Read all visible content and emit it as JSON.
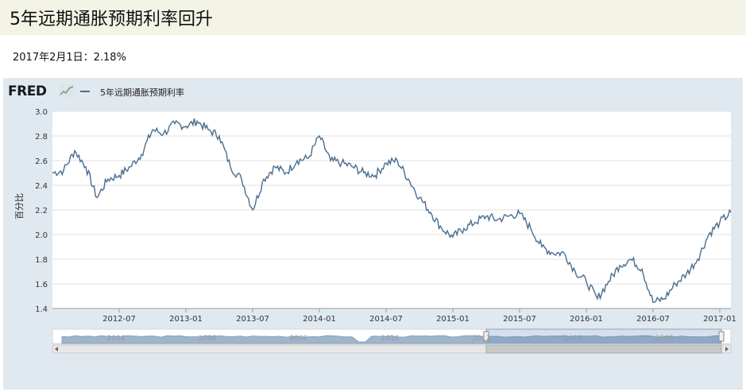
{
  "page": {
    "title": "5年远期通胀预期利率回升",
    "subtitle": "2017年2月1日：2.18%"
  },
  "fred": {
    "logo_text": "FRED",
    "logo_icon": "fred-chart-icon"
  },
  "colors": {
    "series": "#4a6d8f",
    "navigator_fill": "#9fb5cc",
    "panel_bg": "#e1e9f0"
  },
  "chart_data": {
    "type": "line",
    "title": "",
    "xlabel": "",
    "ylabel": "百分比",
    "ylim": [
      1.4,
      3.0
    ],
    "yticks": [
      "1.4",
      "1.6",
      "1.8",
      "2.0",
      "2.2",
      "2.4",
      "2.6",
      "2.8",
      "3.0"
    ],
    "xticks": [
      "2012-07",
      "2013-01",
      "2013-07",
      "2014-01",
      "2014-07",
      "2015-01",
      "2015-07",
      "2016-01",
      "2016-07",
      "2017-01"
    ],
    "grid": true,
    "legend": "top-left",
    "series": [
      {
        "name": "5年远期通胀预期利率",
        "x": [
          "2012-01",
          "2012-02",
          "2012-03",
          "2012-04",
          "2012-05",
          "2012-06",
          "2012-07",
          "2012-08",
          "2012-09",
          "2012-10",
          "2012-11",
          "2012-12",
          "2013-01",
          "2013-02",
          "2013-03",
          "2013-04",
          "2013-05",
          "2013-06",
          "2013-07",
          "2013-08",
          "2013-09",
          "2013-10",
          "2013-11",
          "2013-12",
          "2014-01",
          "2014-02",
          "2014-03",
          "2014-04",
          "2014-05",
          "2014-06",
          "2014-07",
          "2014-08",
          "2014-09",
          "2014-10",
          "2014-11",
          "2014-12",
          "2015-01",
          "2015-02",
          "2015-03",
          "2015-04",
          "2015-05",
          "2015-06",
          "2015-07",
          "2015-08",
          "2015-09",
          "2015-10",
          "2015-11",
          "2015-12",
          "2016-01",
          "2016-02",
          "2016-03",
          "2016-04",
          "2016-05",
          "2016-06",
          "2016-07",
          "2016-08",
          "2016-09",
          "2016-10",
          "2016-11",
          "2016-12",
          "2017-01",
          "2017-02"
        ],
        "values": [
          2.5,
          2.52,
          2.68,
          2.55,
          2.3,
          2.45,
          2.48,
          2.55,
          2.65,
          2.85,
          2.82,
          2.9,
          2.88,
          2.92,
          2.85,
          2.8,
          2.55,
          2.45,
          2.2,
          2.45,
          2.55,
          2.5,
          2.6,
          2.62,
          2.8,
          2.6,
          2.58,
          2.55,
          2.5,
          2.48,
          2.58,
          2.6,
          2.45,
          2.3,
          2.18,
          2.05,
          1.98,
          2.05,
          2.1,
          2.15,
          2.12,
          2.15,
          2.17,
          2.05,
          1.9,
          1.85,
          1.85,
          1.7,
          1.62,
          1.48,
          1.62,
          1.75,
          1.8,
          1.72,
          1.45,
          1.48,
          1.6,
          1.68,
          1.8,
          2.0,
          2.1,
          2.18
        ]
      }
    ]
  },
  "navigator": {
    "year_labels": [
      "2004",
      "2006",
      "2008",
      "2010",
      "2012",
      "2014",
      "2016"
    ]
  }
}
